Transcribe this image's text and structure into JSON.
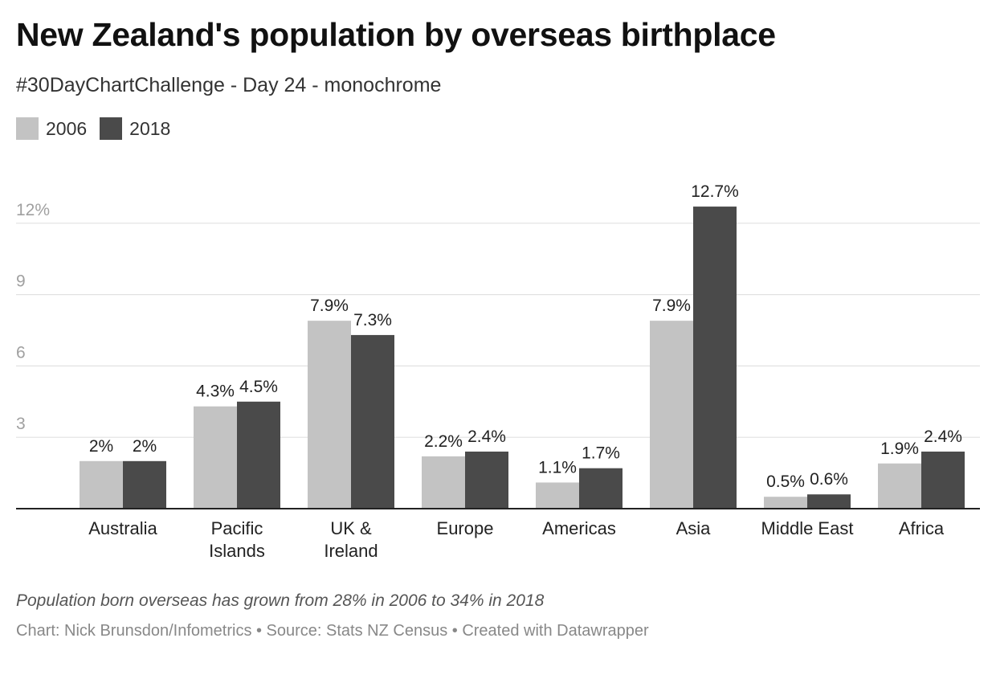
{
  "header": {
    "title": "New Zealand's population by overseas birthplace",
    "subtitle": "#30DayChartChallenge - Day 24 - monochrome"
  },
  "footer": {
    "notes": "Population born overseas has grown from 28% in 2006 to 34% in 2018",
    "byline": "Chart: Nick Brunsdon/Infometrics • Source: Stats NZ Census • Created with Datawrapper"
  },
  "chart_data": {
    "type": "bar",
    "categories": [
      [
        "Australia"
      ],
      [
        "Pacific",
        "Islands"
      ],
      [
        "UK &",
        "Ireland"
      ],
      [
        "Europe"
      ],
      [
        "Americas"
      ],
      [
        "Asia"
      ],
      [
        "Middle East"
      ],
      [
        "Africa"
      ]
    ],
    "series": [
      {
        "name": "2006",
        "color": "#c3c3c3",
        "values": [
          2.0,
          4.3,
          7.9,
          2.2,
          1.1,
          7.9,
          0.5,
          1.9
        ],
        "labels": [
          "2%",
          "4.3%",
          "7.9%",
          "2.2%",
          "1.1%",
          "7.9%",
          "0.5%",
          "1.9%"
        ]
      },
      {
        "name": "2018",
        "color": "#4a4a4a",
        "values": [
          2.0,
          4.5,
          7.3,
          2.4,
          1.7,
          12.7,
          0.6,
          2.4
        ],
        "labels": [
          "2%",
          "4.5%",
          "7.3%",
          "2.4%",
          "1.7%",
          "12.7%",
          "0.6%",
          "2.4%"
        ]
      }
    ],
    "y_ticks": [
      {
        "value": 3,
        "label": "3"
      },
      {
        "value": 6,
        "label": "6"
      },
      {
        "value": 9,
        "label": "9"
      },
      {
        "value": 12,
        "label": "12%"
      }
    ],
    "ylim": [
      0,
      13.5
    ],
    "grid": true,
    "legend_position": "top-left"
  }
}
